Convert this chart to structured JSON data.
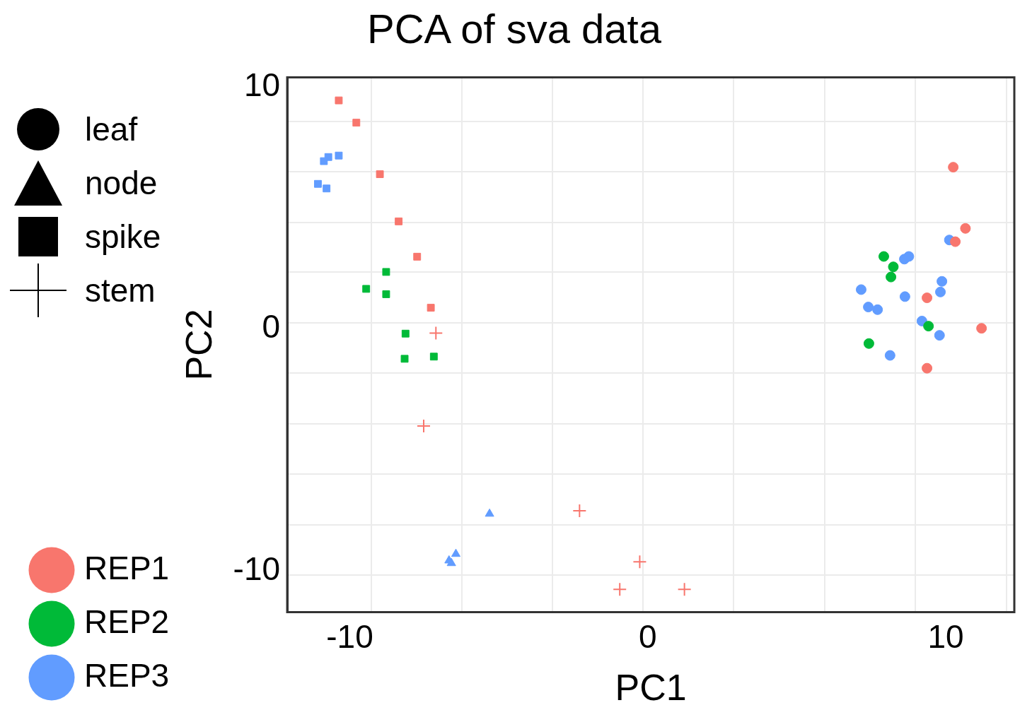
{
  "chart_data": {
    "type": "scatter",
    "title": "PCA of sva data",
    "xlabel": "PC1",
    "ylabel": "PC2",
    "annotations": [
      "leaf",
      "node",
      "spike",
      "stem"
    ],
    "xlim": [
      -12.1,
      12.3
    ],
    "ylim": [
      -11.7,
      10.4
    ],
    "xticks": [
      {
        "value": -10,
        "label": "-10"
      },
      {
        "value": -9.28,
        "label": null
      },
      {
        "value": -6.23,
        "label": null
      },
      {
        "value": -3.21,
        "label": null
      },
      {
        "value": -0.16,
        "label": null
      },
      {
        "value": 0,
        "label": "0"
      },
      {
        "value": 2.88,
        "label": null
      },
      {
        "value": 5.93,
        "label": null
      },
      {
        "value": 8.98,
        "label": null
      },
      {
        "value": 10,
        "label": "10"
      },
      {
        "value": 12.03,
        "label": null
      }
    ],
    "yticks": [
      {
        "value": -10.18,
        "label": null
      },
      {
        "value": -10,
        "label": "-10"
      },
      {
        "value": -8.09,
        "label": null
      },
      {
        "value": -6.0,
        "label": null
      },
      {
        "value": -3.91,
        "label": null
      },
      {
        "value": -1.83,
        "label": null
      },
      {
        "value": 0,
        "label": "0"
      },
      {
        "value": 0.26,
        "label": null
      },
      {
        "value": 2.35,
        "label": null
      },
      {
        "value": 4.41,
        "label": null
      },
      {
        "value": 6.5,
        "label": null
      },
      {
        "value": 8.59,
        "label": null
      },
      {
        "value": 10,
        "label": "10"
      }
    ],
    "grid": true,
    "legend": "left",
    "series": [
      {
        "name": "REP1",
        "color": "#f8766d",
        "marker": "circle",
        "x": [
          10.25,
          10.66,
          10.32,
          9.37,
          11.2,
          9.37
        ],
        "values": [
          6.69,
          4.16,
          3.61,
          1.29,
          0.03,
          -1.62
        ]
      },
      {
        "color": "#f8766d",
        "marker": "square",
        "x": [
          -10.37,
          -9.78,
          -8.99,
          -8.36,
          -7.74,
          -7.28
        ],
        "values": [
          9.45,
          8.53,
          6.4,
          4.45,
          2.99,
          0.88
        ]
      },
      {
        "color": "#f8766d",
        "marker": "cross",
        "x": [
          -7.11,
          -7.52,
          -2.29,
          -0.27,
          -0.94,
          1.23
        ],
        "values": [
          -0.17,
          -4.01,
          -7.51,
          -9.62,
          -10.76,
          -10.76
        ]
      },
      {
        "name": "REP2",
        "color": "#00ba38",
        "marker": "circle",
        "x": [
          7.92,
          8.24,
          8.16,
          9.42,
          7.42
        ],
        "values": [
          3.0,
          2.57,
          2.15,
          0.12,
          -0.6
        ]
      },
      {
        "color": "#00ba38",
        "marker": "square",
        "x": [
          -8.78,
          -9.45,
          -8.78,
          -8.13,
          -8.16,
          -7.18
        ],
        "values": [
          2.36,
          1.66,
          1.44,
          -0.19,
          -1.23,
          -1.14
        ]
      },
      {
        "name": "REP3",
        "color": "#619cff",
        "marker": "circle",
        "x": [
          10.12,
          8.61,
          8.76,
          9.87,
          9.82,
          7.16,
          8.63,
          7.4,
          7.71,
          9.2,
          9.79,
          8.13
        ],
        "values": [
          3.68,
          2.89,
          3.0,
          1.97,
          1.53,
          1.63,
          1.34,
          0.91,
          0.8,
          0.33,
          -0.26,
          -1.09
        ]
      },
      {
        "color": "#619cff",
        "marker": "triangle",
        "x": [
          -5.31,
          -6.44,
          -6.67,
          -6.59
        ],
        "values": [
          -7.64,
          -9.3,
          -9.57,
          -9.68
        ]
      },
      {
        "color": "#619cff",
        "marker": "square",
        "x": [
          -10.37,
          -10.72,
          -10.87,
          -11.07,
          -10.78
        ],
        "values": [
          7.17,
          7.11,
          6.94,
          6.0,
          5.81
        ]
      }
    ]
  }
}
